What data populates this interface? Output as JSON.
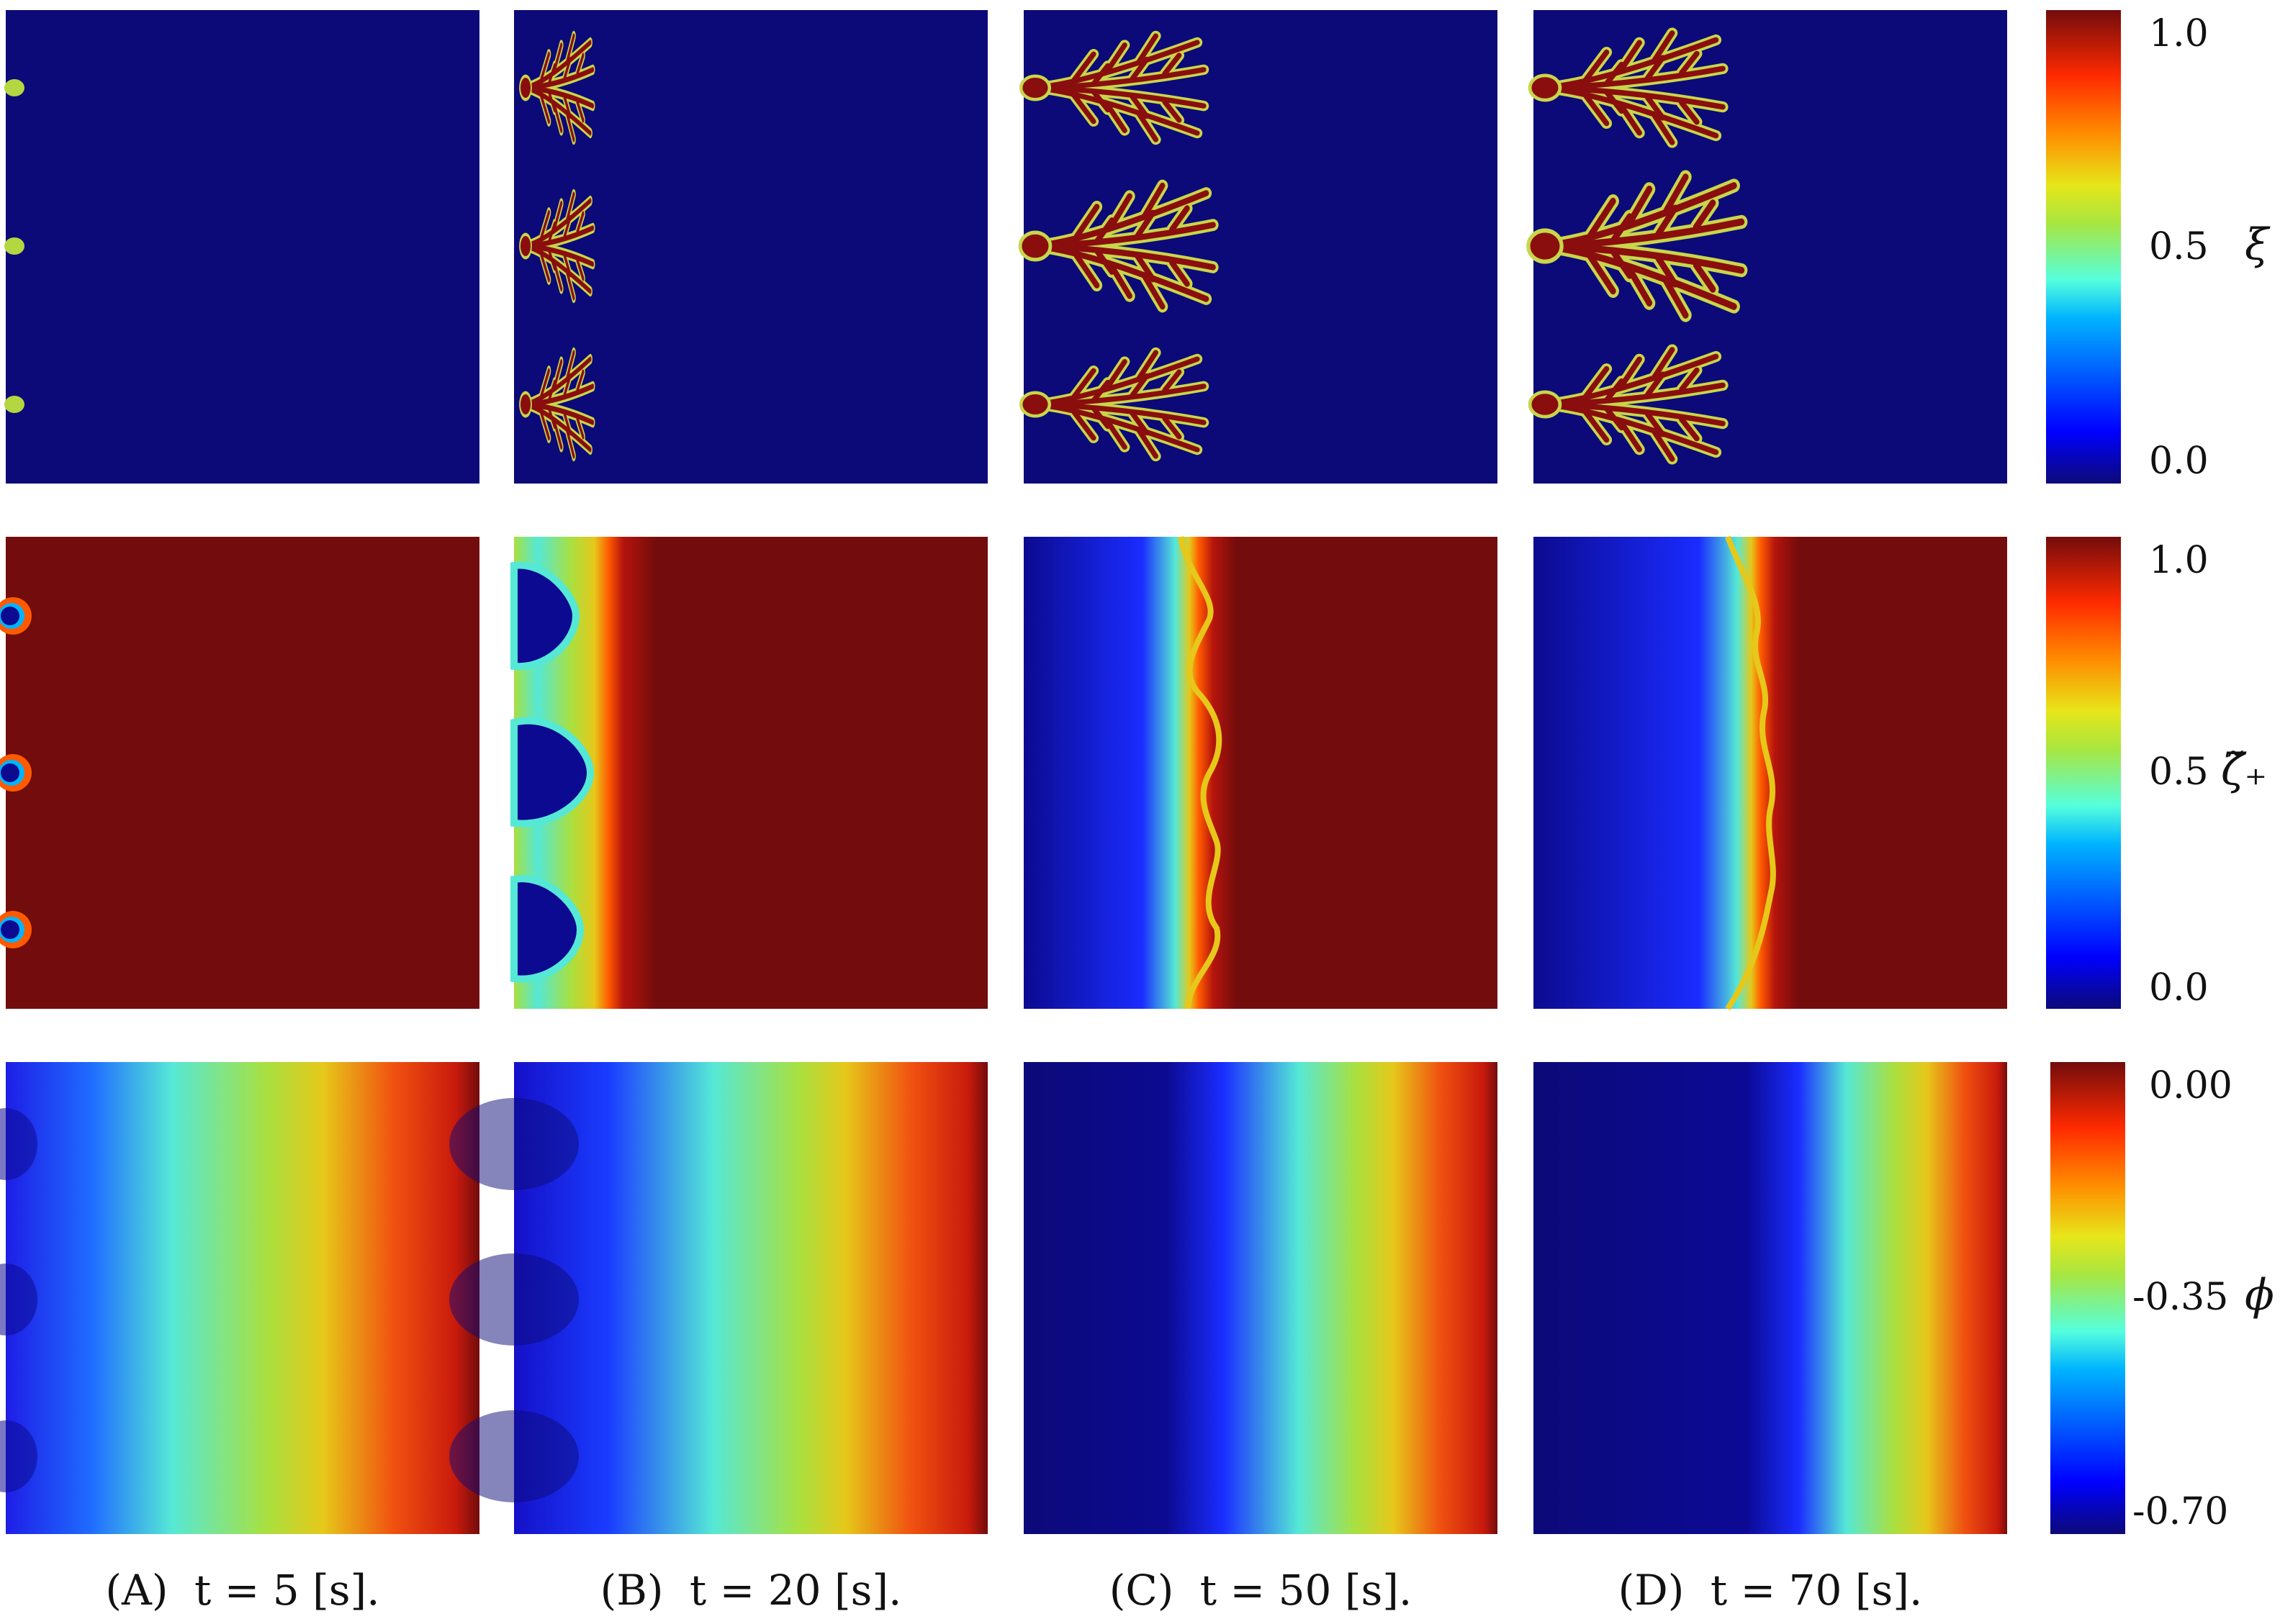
{
  "rows": [
    {
      "field": "xi",
      "colorbar": {
        "ticks": [
          "1.0",
          "0.5",
          "0.0"
        ],
        "symbol": "ξ"
      }
    },
    {
      "field": "zeta_plus",
      "colorbar": {
        "ticks": [
          "1.0",
          "0.5",
          "0.0"
        ],
        "symbol": "ζ̃₊"
      }
    },
    {
      "field": "phi",
      "colorbar": {
        "ticks": [
          "0.00",
          "-0.35",
          "-0.70"
        ],
        "symbol": "ϕ"
      }
    }
  ],
  "columns": [
    {
      "letter": "(A)",
      "time": "t = 5 [s]."
    },
    {
      "letter": "(B)",
      "time": "t = 20 [s]."
    },
    {
      "letter": "(C)",
      "time": "t = 50 [s]."
    },
    {
      "letter": "(D)",
      "time": "t = 70 [s]."
    }
  ],
  "colors": {
    "background": "#0c0a78",
    "field_max": "#730c0c",
    "dendrite_core": "#8a0e0e",
    "dendrite_rim": "#c8d64a",
    "jet_stops": [
      "#0c0a78",
      "#0000ff",
      "#00b4ff",
      "#55ffdd",
      "#a8e640",
      "#e6e61a",
      "#ff8c00",
      "#ff2a00",
      "#730c0c"
    ]
  }
}
